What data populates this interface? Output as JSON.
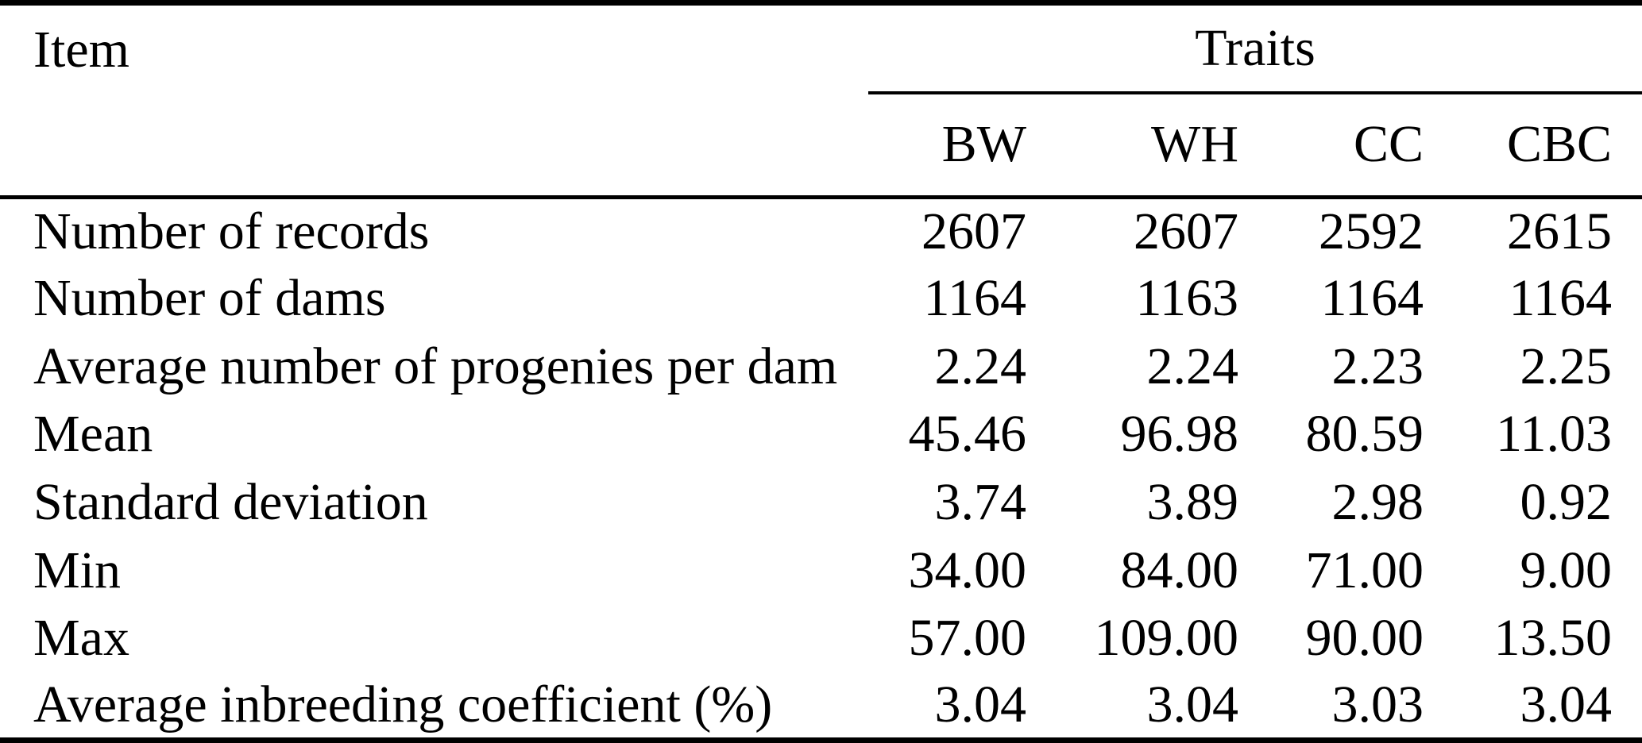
{
  "table": {
    "item_header": "Item",
    "traits_header": "Traits",
    "columns": [
      "BW",
      "WH",
      "CC",
      "CBC"
    ],
    "rows": [
      {
        "label": "Number of records",
        "values": [
          "2607",
          "2607",
          "2592",
          "2615"
        ]
      },
      {
        "label": "Number of dams",
        "values": [
          "1164",
          "1163",
          "1164",
          "1164"
        ]
      },
      {
        "label": "Average number of progenies per dam",
        "values": [
          "2.24",
          "2.24",
          "2.23",
          "2.25"
        ]
      },
      {
        "label": "Mean",
        "values": [
          "45.46",
          "96.98",
          "80.59",
          "11.03"
        ]
      },
      {
        "label": "Standard deviation",
        "values": [
          "3.74",
          "3.89",
          "2.98",
          "0.92"
        ]
      },
      {
        "label": "Min",
        "values": [
          "34.00",
          "84.00",
          "71.00",
          "9.00"
        ]
      },
      {
        "label": "Max",
        "values": [
          "57.00",
          "109.00",
          "90.00",
          "13.50"
        ]
      },
      {
        "label": "Average inbreeding coefficient (%)",
        "values": [
          "3.04",
          "3.04",
          "3.03",
          "3.04"
        ]
      }
    ],
    "colors": {
      "text": "#000000",
      "background": "#ffffff",
      "rule": "#000000"
    }
  }
}
